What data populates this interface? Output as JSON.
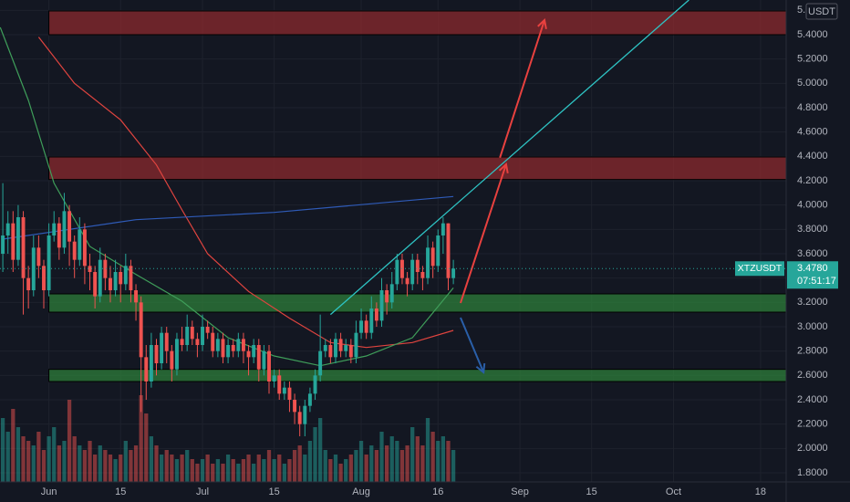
{
  "chart_data": {
    "type": "candlestick",
    "currency": "USDT",
    "x": [
      -9,
      -8,
      -7,
      -6,
      -5,
      -4,
      -3,
      -2,
      -1,
      0,
      1,
      2,
      3,
      4,
      5,
      6,
      7,
      8,
      9,
      10,
      11,
      12,
      13,
      14,
      15,
      16,
      17,
      18,
      19,
      20,
      21,
      22,
      23,
      24,
      25,
      26,
      27,
      28,
      29,
      30,
      31,
      32,
      33,
      34,
      35,
      36,
      37,
      38,
      39,
      40,
      41,
      42,
      43,
      44,
      45,
      46,
      47,
      48,
      49,
      50,
      51,
      52,
      53,
      54,
      55,
      56,
      57,
      58,
      59,
      60,
      61,
      62,
      63,
      64,
      65,
      66,
      67,
      68,
      69,
      70,
      71,
      72,
      73,
      74,
      75,
      76,
      77,
      78,
      79
    ],
    "open": [
      3.6,
      3.75,
      3.85,
      3.55,
      3.9,
      3.4,
      3.3,
      3.65,
      3.5,
      3.3,
      3.75,
      3.85,
      3.65,
      3.95,
      3.7,
      3.55,
      3.8,
      3.5,
      3.45,
      3.25,
      3.55,
      3.4,
      3.3,
      3.45,
      3.35,
      3.5,
      3.3,
      3.2,
      2.75,
      2.55,
      2.85,
      2.7,
      2.95,
      2.8,
      2.65,
      2.9,
      2.85,
      3.0,
      2.9,
      2.85,
      3.0,
      2.95,
      2.8,
      2.9,
      2.75,
      2.85,
      2.8,
      2.9,
      2.8,
      2.75,
      2.85,
      2.65,
      2.8,
      2.55,
      2.6,
      2.45,
      2.5,
      2.4,
      2.3,
      2.2,
      2.35,
      2.45,
      2.6,
      2.8,
      2.85,
      2.75,
      2.9,
      2.8,
      2.85,
      2.75,
      2.95,
      3.05,
      2.95,
      3.15,
      3.05,
      3.3,
      3.2,
      3.35,
      3.55,
      3.4,
      3.35,
      3.55,
      3.45,
      3.4,
      3.65,
      3.5,
      3.75,
      3.85,
      3.4
    ],
    "high": [
      4.18,
      3.95,
      3.95,
      4.0,
      3.95,
      3.5,
      3.75,
      3.75,
      3.55,
      3.85,
      3.95,
      3.9,
      4.1,
      4.0,
      3.75,
      3.9,
      3.85,
      3.6,
      3.5,
      3.65,
      3.6,
      3.5,
      3.55,
      3.5,
      3.6,
      3.55,
      3.35,
      3.25,
      2.85,
      2.95,
      2.9,
      3.0,
      3.0,
      2.85,
      2.95,
      3.0,
      3.1,
      3.05,
      2.95,
      3.1,
      3.05,
      3.0,
      2.95,
      2.95,
      2.9,
      2.9,
      2.95,
      2.95,
      2.85,
      2.9,
      2.9,
      2.85,
      2.85,
      2.65,
      2.65,
      2.55,
      2.55,
      2.45,
      2.35,
      2.4,
      2.5,
      2.65,
      3.1,
      2.9,
      2.9,
      2.95,
      2.95,
      2.9,
      2.9,
      3.05,
      3.15,
      3.1,
      3.25,
      3.2,
      3.4,
      3.35,
      3.45,
      3.6,
      3.6,
      3.45,
      3.6,
      3.6,
      3.5,
      3.75,
      3.7,
      3.8,
      3.9,
      3.85,
      3.55
    ],
    "low": [
      3.45,
      3.6,
      3.45,
      3.5,
      3.1,
      3.15,
      3.25,
      3.4,
      3.15,
      3.25,
      3.7,
      3.55,
      3.6,
      3.5,
      3.4,
      3.5,
      3.35,
      3.3,
      3.15,
      3.2,
      3.3,
      3.2,
      3.25,
      3.2,
      3.3,
      3.2,
      3.05,
      2.3,
      2.4,
      2.5,
      2.6,
      2.65,
      2.7,
      2.55,
      2.6,
      2.8,
      2.8,
      2.85,
      2.75,
      2.8,
      2.9,
      2.75,
      2.75,
      2.7,
      2.7,
      2.75,
      2.75,
      2.7,
      2.6,
      2.7,
      2.55,
      2.6,
      2.45,
      2.5,
      2.4,
      2.4,
      2.3,
      2.2,
      2.1,
      2.1,
      2.3,
      2.4,
      2.55,
      2.75,
      2.7,
      2.7,
      2.75,
      2.75,
      2.7,
      2.7,
      2.9,
      2.9,
      2.9,
      3.0,
      3.0,
      3.1,
      3.15,
      3.3,
      3.35,
      3.25,
      3.3,
      3.35,
      3.3,
      3.35,
      3.4,
      3.45,
      3.6,
      3.3,
      3.35
    ],
    "close": [
      3.75,
      3.85,
      3.55,
      3.9,
      3.4,
      3.3,
      3.65,
      3.5,
      3.3,
      3.75,
      3.85,
      3.65,
      3.95,
      3.7,
      3.55,
      3.8,
      3.5,
      3.45,
      3.25,
      3.55,
      3.4,
      3.3,
      3.45,
      3.35,
      3.5,
      3.3,
      3.2,
      2.75,
      2.55,
      2.85,
      2.7,
      2.95,
      2.8,
      2.65,
      2.9,
      2.85,
      3.0,
      2.9,
      2.85,
      3.0,
      2.95,
      2.8,
      2.9,
      2.75,
      2.85,
      2.8,
      2.9,
      2.8,
      2.75,
      2.85,
      2.65,
      2.8,
      2.55,
      2.6,
      2.45,
      2.5,
      2.4,
      2.3,
      2.2,
      2.35,
      2.45,
      2.6,
      2.8,
      2.85,
      2.75,
      2.9,
      2.8,
      2.85,
      2.75,
      2.95,
      3.05,
      2.95,
      3.15,
      3.05,
      3.3,
      3.2,
      3.35,
      3.55,
      3.4,
      3.35,
      3.55,
      3.45,
      3.4,
      3.65,
      3.5,
      3.75,
      3.85,
      3.4,
      3.478
    ],
    "volume": [
      70,
      55,
      80,
      60,
      50,
      45,
      40,
      55,
      35,
      50,
      60,
      40,
      45,
      90,
      50,
      40,
      35,
      45,
      30,
      40,
      35,
      30,
      25,
      30,
      45,
      35,
      40,
      95,
      75,
      50,
      40,
      30,
      35,
      30,
      25,
      30,
      35,
      25,
      20,
      25,
      30,
      20,
      25,
      20,
      30,
      25,
      20,
      25,
      30,
      20,
      30,
      25,
      35,
      25,
      30,
      20,
      25,
      35,
      40,
      30,
      45,
      60,
      70,
      35,
      25,
      30,
      20,
      25,
      30,
      35,
      45,
      30,
      40,
      35,
      55,
      40,
      50,
      45,
      35,
      40,
      60,
      50,
      40,
      70,
      55,
      45,
      50,
      45,
      35
    ],
    "up_color": "#26a69a",
    "down_color": "#ef5350",
    "xlim": [
      -9.55,
      144
    ],
    "ylim": [
      1.725,
      5.685
    ],
    "xticks": [
      {
        "value": 0,
        "label": "Jun"
      },
      {
        "value": 14,
        "label": "15"
      },
      {
        "value": 30,
        "label": "Jul"
      },
      {
        "value": 44,
        "label": "15"
      },
      {
        "value": 61,
        "label": "Aug"
      },
      {
        "value": 76,
        "label": "16"
      },
      {
        "value": 92,
        "label": "Sep"
      },
      {
        "value": 106,
        "label": "15"
      },
      {
        "value": 122,
        "label": "Oct"
      },
      {
        "value": 139,
        "label": "18"
      }
    ],
    "yticks": [
      {
        "value": 1.8,
        "label": "1.8000"
      },
      {
        "value": 2.0,
        "label": "2.0000"
      },
      {
        "value": 2.2,
        "label": "2.2000"
      },
      {
        "value": 2.4,
        "label": "2.4000"
      },
      {
        "value": 2.6,
        "label": "2.6000"
      },
      {
        "value": 2.8,
        "label": "2.8000"
      },
      {
        "value": 3.0,
        "label": "3.0000"
      },
      {
        "value": 3.2,
        "label": "3.2000"
      },
      {
        "value": 3.4,
        "label": "3.4000"
      },
      {
        "value": 3.6,
        "label": "3.6000"
      },
      {
        "value": 3.8,
        "label": "3.8000"
      },
      {
        "value": 4.0,
        "label": "4.0000"
      },
      {
        "value": 4.2,
        "label": "4.2000"
      },
      {
        "value": 4.4,
        "label": "4.4000"
      },
      {
        "value": 4.6,
        "label": "4.6000"
      },
      {
        "value": 4.8,
        "label": "4.8000"
      },
      {
        "value": 5.0,
        "label": "5.0000"
      },
      {
        "value": 5.2,
        "label": "5.2000"
      },
      {
        "value": 5.4,
        "label": "5.4000"
      },
      {
        "value": 5.6,
        "label": "5.6000"
      }
    ],
    "grid": true,
    "zones": [
      {
        "x0": 0,
        "y0": 5.4,
        "y1": 5.595,
        "color": "#8b2a2e"
      },
      {
        "x0": 0,
        "y0": 4.21,
        "y1": 4.395,
        "color": "#8b2a2e"
      },
      {
        "x0": 0,
        "y0": 3.12,
        "y1": 3.27,
        "color": "#2e7d3a"
      },
      {
        "x0": 0,
        "y0": 2.55,
        "y1": 2.65,
        "color": "#2e7d3a"
      }
    ],
    "overlays": [
      {
        "color": "#e0443f",
        "x": [
          -2,
          5,
          14,
          21,
          26,
          31,
          39,
          47,
          55,
          62,
          71,
          79
        ],
        "values": [
          5.38,
          5.0,
          4.7,
          4.33,
          3.96,
          3.6,
          3.29,
          3.07,
          2.87,
          2.83,
          2.87,
          2.97
        ]
      },
      {
        "color": "#3f9e5a",
        "x": [
          -9.5,
          -4,
          1,
          8,
          17,
          26,
          35,
          44,
          53,
          62,
          71,
          79
        ],
        "values": [
          5.46,
          4.86,
          4.18,
          3.66,
          3.43,
          3.21,
          2.91,
          2.76,
          2.68,
          2.76,
          2.91,
          3.32
        ]
      },
      {
        "color": "#2f5bb8",
        "x": [
          -9,
          17,
          44,
          79
        ],
        "values": [
          3.72,
          3.88,
          3.94,
          4.07
        ]
      }
    ],
    "trendline": {
      "color": "#2ec4c4",
      "x": [
        55,
        125
      ],
      "values": [
        3.1,
        5.685
      ]
    },
    "arrows": [
      {
        "color": "#e8413f",
        "x": [
          80.4,
          89.3
        ],
        "values": [
          3.195,
          4.335
        ]
      },
      {
        "color": "#e8413f",
        "x": [
          88.1,
          96.8
        ],
        "values": [
          4.39,
          5.52
        ]
      },
      {
        "color": "#2a5fa8",
        "x": [
          80.4,
          84.9
        ],
        "values": [
          3.075,
          2.625
        ]
      }
    ],
    "last_price": {
      "symbol": "XTZUSDT",
      "value": 3.478,
      "label": "3.4780",
      "countdown": "07:51:17"
    }
  }
}
